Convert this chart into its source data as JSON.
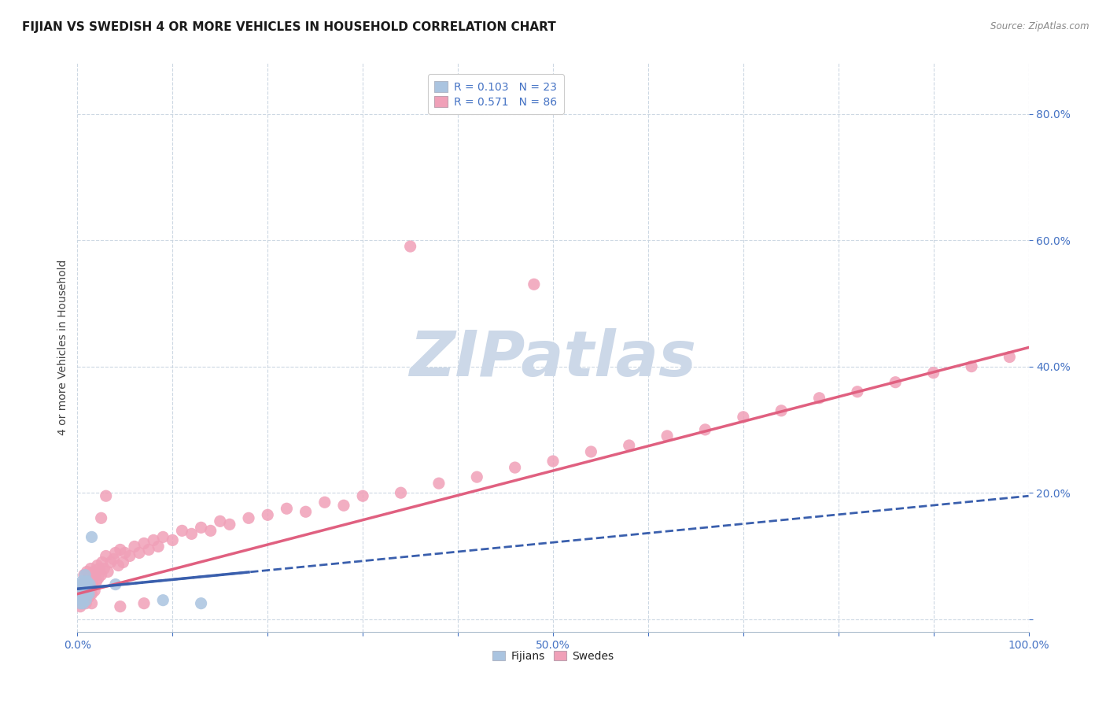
{
  "title": "FIJIAN VS SWEDISH 4 OR MORE VEHICLES IN HOUSEHOLD CORRELATION CHART",
  "source_text": "Source: ZipAtlas.com",
  "ylabel": "4 or more Vehicles in Household",
  "xlim": [
    0.0,
    1.0
  ],
  "ylim": [
    -0.02,
    0.88
  ],
  "legend_r1": "R = 0.103",
  "legend_n1": "N = 23",
  "legend_r2": "R = 0.571",
  "legend_n2": "N = 86",
  "fijian_color": "#aac4e0",
  "swedish_color": "#f0a0b8",
  "fijian_line_color": "#3a5fad",
  "swedish_line_color": "#e06080",
  "background_color": "#ffffff",
  "watermark_color": "#ccd8e8",
  "grid_color": "#c8d4e0",
  "title_fontsize": 11,
  "axis_label_fontsize": 10,
  "tick_fontsize": 10,
  "legend_fontsize": 10,
  "fijian_x": [
    0.002,
    0.003,
    0.004,
    0.004,
    0.005,
    0.005,
    0.006,
    0.006,
    0.007,
    0.007,
    0.008,
    0.008,
    0.009,
    0.009,
    0.01,
    0.01,
    0.011,
    0.012,
    0.013,
    0.015,
    0.04,
    0.09,
    0.13
  ],
  "fijian_y": [
    0.035,
    0.025,
    0.045,
    0.055,
    0.03,
    0.06,
    0.025,
    0.055,
    0.035,
    0.05,
    0.04,
    0.07,
    0.03,
    0.055,
    0.04,
    0.06,
    0.05,
    0.04,
    0.055,
    0.13,
    0.055,
    0.03,
    0.025
  ],
  "swede_x": [
    0.002,
    0.003,
    0.004,
    0.005,
    0.005,
    0.006,
    0.007,
    0.007,
    0.008,
    0.008,
    0.009,
    0.01,
    0.01,
    0.011,
    0.012,
    0.012,
    0.013,
    0.014,
    0.015,
    0.015,
    0.016,
    0.017,
    0.018,
    0.019,
    0.02,
    0.021,
    0.022,
    0.023,
    0.025,
    0.026,
    0.028,
    0.03,
    0.032,
    0.035,
    0.038,
    0.04,
    0.043,
    0.045,
    0.048,
    0.05,
    0.055,
    0.06,
    0.065,
    0.07,
    0.075,
    0.08,
    0.085,
    0.09,
    0.1,
    0.11,
    0.12,
    0.13,
    0.14,
    0.15,
    0.16,
    0.18,
    0.2,
    0.22,
    0.24,
    0.26,
    0.28,
    0.3,
    0.34,
    0.38,
    0.42,
    0.46,
    0.5,
    0.54,
    0.58,
    0.62,
    0.66,
    0.7,
    0.74,
    0.78,
    0.82,
    0.86,
    0.9,
    0.94,
    0.98,
    0.03,
    0.025,
    0.015,
    0.35,
    0.48,
    0.045,
    0.07
  ],
  "swede_y": [
    0.035,
    0.02,
    0.04,
    0.025,
    0.05,
    0.03,
    0.045,
    0.07,
    0.035,
    0.06,
    0.025,
    0.045,
    0.075,
    0.055,
    0.035,
    0.065,
    0.05,
    0.08,
    0.04,
    0.065,
    0.055,
    0.075,
    0.045,
    0.07,
    0.06,
    0.085,
    0.065,
    0.08,
    0.07,
    0.09,
    0.08,
    0.1,
    0.075,
    0.09,
    0.095,
    0.105,
    0.085,
    0.11,
    0.09,
    0.105,
    0.1,
    0.115,
    0.105,
    0.12,
    0.11,
    0.125,
    0.115,
    0.13,
    0.125,
    0.14,
    0.135,
    0.145,
    0.14,
    0.155,
    0.15,
    0.16,
    0.165,
    0.175,
    0.17,
    0.185,
    0.18,
    0.195,
    0.2,
    0.215,
    0.225,
    0.24,
    0.25,
    0.265,
    0.275,
    0.29,
    0.3,
    0.32,
    0.33,
    0.35,
    0.36,
    0.375,
    0.39,
    0.4,
    0.415,
    0.195,
    0.16,
    0.025,
    0.59,
    0.53,
    0.02,
    0.025
  ],
  "fijian_line_x": [
    0.0,
    1.0
  ],
  "fijian_line_y": [
    0.048,
    0.195
  ],
  "swede_line_x": [
    0.0,
    1.0
  ],
  "swede_line_y": [
    0.04,
    0.43
  ]
}
